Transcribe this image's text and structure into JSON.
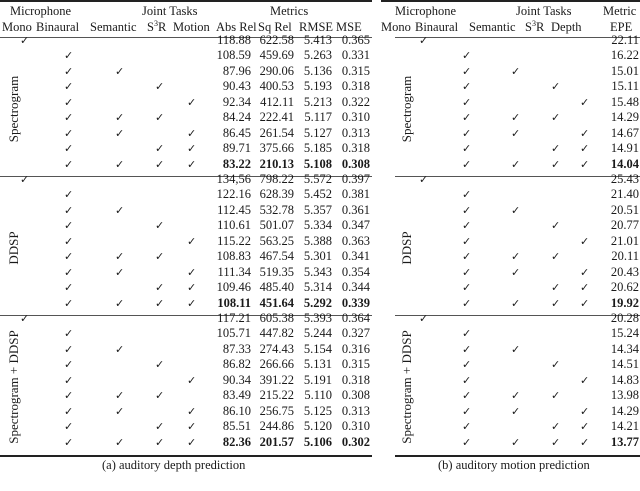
{
  "left_table": {
    "header": {
      "microphone": "Microphone",
      "joint_tasks": "Joint Tasks",
      "metrics": "Metrics",
      "cols": {
        "mono": "Mono",
        "binaural": "Binaural",
        "semantic": "Semantic",
        "s3r_base": "S",
        "s3r_sup": "3",
        "s3r_tail": "R",
        "task3": "Motion",
        "m1": "Abs Rel",
        "m2": "Sq Rel",
        "m3": "RMSE",
        "m4": "MSE"
      }
    },
    "groups": [
      {
        "label": "Spectrogram",
        "rows": [
          {
            "mono": true,
            "bin": false,
            "sem": false,
            "s3r": false,
            "t3": false,
            "v": [
              "118.88",
              "622.58",
              "5.413",
              "0.365"
            ],
            "bold": false
          },
          {
            "mono": false,
            "bin": true,
            "sem": false,
            "s3r": false,
            "t3": false,
            "v": [
              "108.59",
              "459.69",
              "5.263",
              "0.331"
            ],
            "bold": false
          },
          {
            "mono": false,
            "bin": true,
            "sem": true,
            "s3r": false,
            "t3": false,
            "v": [
              "87.96",
              "290.06",
              "5.136",
              "0.315"
            ],
            "bold": false
          },
          {
            "mono": false,
            "bin": true,
            "sem": false,
            "s3r": true,
            "t3": false,
            "v": [
              "90.43",
              "400.53",
              "5.193",
              "0.318"
            ],
            "bold": false
          },
          {
            "mono": false,
            "bin": true,
            "sem": false,
            "s3r": false,
            "t3": true,
            "v": [
              "92.34",
              "412.11",
              "5.213",
              "0.322"
            ],
            "bold": false
          },
          {
            "mono": false,
            "bin": true,
            "sem": true,
            "s3r": true,
            "t3": false,
            "v": [
              "84.24",
              "222.41",
              "5.117",
              "0.310"
            ],
            "bold": false
          },
          {
            "mono": false,
            "bin": true,
            "sem": true,
            "s3r": false,
            "t3": true,
            "v": [
              "86.45",
              "261.54",
              "5.127",
              "0.313"
            ],
            "bold": false
          },
          {
            "mono": false,
            "bin": true,
            "sem": false,
            "s3r": true,
            "t3": true,
            "v": [
              "89.71",
              "375.66",
              "5.185",
              "0.318"
            ],
            "bold": false
          },
          {
            "mono": false,
            "bin": true,
            "sem": true,
            "s3r": true,
            "t3": true,
            "v": [
              "83.22",
              "210.13",
              "5.108",
              "0.308"
            ],
            "bold": true
          }
        ]
      },
      {
        "label": "DDSP",
        "rows": [
          {
            "mono": true,
            "bin": false,
            "sem": false,
            "s3r": false,
            "t3": false,
            "v": [
              "134,56",
              "798.22",
              "5.572",
              "0.397"
            ],
            "bold": false
          },
          {
            "mono": false,
            "bin": true,
            "sem": false,
            "s3r": false,
            "t3": false,
            "v": [
              "122.16",
              "628.39",
              "5.452",
              "0.381"
            ],
            "bold": false
          },
          {
            "mono": false,
            "bin": true,
            "sem": true,
            "s3r": false,
            "t3": false,
            "v": [
              "112.45",
              "532.78",
              "5.357",
              "0.361"
            ],
            "bold": false
          },
          {
            "mono": false,
            "bin": true,
            "sem": false,
            "s3r": true,
            "t3": false,
            "v": [
              "110.61",
              "501.07",
              "5.334",
              "0.347"
            ],
            "bold": false
          },
          {
            "mono": false,
            "bin": true,
            "sem": false,
            "s3r": false,
            "t3": true,
            "v": [
              "115.22",
              "563.25",
              "5.388",
              "0.363"
            ],
            "bold": false
          },
          {
            "mono": false,
            "bin": true,
            "sem": true,
            "s3r": true,
            "t3": false,
            "v": [
              "108.83",
              "467.54",
              "5.301",
              "0.341"
            ],
            "bold": false
          },
          {
            "mono": false,
            "bin": true,
            "sem": true,
            "s3r": false,
            "t3": true,
            "v": [
              "111.34",
              "519.35",
              "5.343",
              "0.354"
            ],
            "bold": false
          },
          {
            "mono": false,
            "bin": true,
            "sem": false,
            "s3r": true,
            "t3": true,
            "v": [
              "109.46",
              "485.40",
              "5.314",
              "0.344"
            ],
            "bold": false
          },
          {
            "mono": false,
            "bin": true,
            "sem": true,
            "s3r": true,
            "t3": true,
            "v": [
              "108.11",
              "451.64",
              "5.292",
              "0.339"
            ],
            "bold": true
          }
        ]
      },
      {
        "label": "Spectrogram + DDSP",
        "rows": [
          {
            "mono": true,
            "bin": false,
            "sem": false,
            "s3r": false,
            "t3": false,
            "v": [
              "117.21",
              "605.38",
              "5.393",
              "0.364"
            ],
            "bold": false
          },
          {
            "mono": false,
            "bin": true,
            "sem": false,
            "s3r": false,
            "t3": false,
            "v": [
              "105.71",
              "447.82",
              "5.244",
              "0.327"
            ],
            "bold": false
          },
          {
            "mono": false,
            "bin": true,
            "sem": true,
            "s3r": false,
            "t3": false,
            "v": [
              "87.33",
              "274.43",
              "5.154",
              "0.316"
            ],
            "bold": false
          },
          {
            "mono": false,
            "bin": true,
            "sem": false,
            "s3r": true,
            "t3": false,
            "v": [
              "86.82",
              "266.66",
              "5.131",
              "0.315"
            ],
            "bold": false
          },
          {
            "mono": false,
            "bin": true,
            "sem": false,
            "s3r": false,
            "t3": true,
            "v": [
              "90.34",
              "391.22",
              "5.191",
              "0.318"
            ],
            "bold": false
          },
          {
            "mono": false,
            "bin": true,
            "sem": true,
            "s3r": true,
            "t3": false,
            "v": [
              "83.49",
              "215.22",
              "5.110",
              "0.308"
            ],
            "bold": false
          },
          {
            "mono": false,
            "bin": true,
            "sem": true,
            "s3r": false,
            "t3": true,
            "v": [
              "86.10",
              "256.75",
              "5.125",
              "0.313"
            ],
            "bold": false
          },
          {
            "mono": false,
            "bin": true,
            "sem": false,
            "s3r": true,
            "t3": true,
            "v": [
              "85.51",
              "244.86",
              "5.120",
              "0.310"
            ],
            "bold": false
          },
          {
            "mono": false,
            "bin": true,
            "sem": true,
            "s3r": true,
            "t3": true,
            "v": [
              "82.36",
              "201.57",
              "5.106",
              "0.302"
            ],
            "bold": true
          }
        ]
      }
    ],
    "caption": "(a) auditory depth prediction"
  },
  "right_table": {
    "header": {
      "microphone": "Microphone",
      "joint_tasks": "Joint Tasks",
      "metrics": "Metric",
      "cols": {
        "mono": "Mono",
        "binaural": "Binaural",
        "semantic": "Semantic",
        "s3r_base": "S",
        "s3r_sup": "3",
        "s3r_tail": "R",
        "task3": "Depth",
        "m1": "EPE"
      }
    },
    "groups": [
      {
        "label": "Spectrogram",
        "rows": [
          {
            "mono": true,
            "bin": false,
            "sem": false,
            "s3r": false,
            "t3": false,
            "v": [
              "22.11"
            ],
            "bold": false
          },
          {
            "mono": false,
            "bin": true,
            "sem": false,
            "s3r": false,
            "t3": false,
            "v": [
              "16.22"
            ],
            "bold": false
          },
          {
            "mono": false,
            "bin": true,
            "sem": true,
            "s3r": false,
            "t3": false,
            "v": [
              "15.01"
            ],
            "bold": false
          },
          {
            "mono": false,
            "bin": true,
            "sem": false,
            "s3r": true,
            "t3": false,
            "v": [
              "15.11"
            ],
            "bold": false
          },
          {
            "mono": false,
            "bin": true,
            "sem": false,
            "s3r": false,
            "t3": true,
            "v": [
              "15.48"
            ],
            "bold": false
          },
          {
            "mono": false,
            "bin": true,
            "sem": true,
            "s3r": true,
            "t3": false,
            "v": [
              "14.29"
            ],
            "bold": false
          },
          {
            "mono": false,
            "bin": true,
            "sem": true,
            "s3r": false,
            "t3": true,
            "v": [
              "14.67"
            ],
            "bold": false
          },
          {
            "mono": false,
            "bin": true,
            "sem": false,
            "s3r": true,
            "t3": true,
            "v": [
              "14.91"
            ],
            "bold": false
          },
          {
            "mono": false,
            "bin": true,
            "sem": true,
            "s3r": true,
            "t3": true,
            "v": [
              "14.04"
            ],
            "bold": true
          }
        ]
      },
      {
        "label": "DDSP",
        "rows": [
          {
            "mono": true,
            "bin": false,
            "sem": false,
            "s3r": false,
            "t3": false,
            "v": [
              "25.43"
            ],
            "bold": false
          },
          {
            "mono": false,
            "bin": true,
            "sem": false,
            "s3r": false,
            "t3": false,
            "v": [
              "21.40"
            ],
            "bold": false
          },
          {
            "mono": false,
            "bin": true,
            "sem": true,
            "s3r": false,
            "t3": false,
            "v": [
              "20.51"
            ],
            "bold": false
          },
          {
            "mono": false,
            "bin": true,
            "sem": false,
            "s3r": true,
            "t3": false,
            "v": [
              "20.77"
            ],
            "bold": false
          },
          {
            "mono": false,
            "bin": true,
            "sem": false,
            "s3r": false,
            "t3": true,
            "v": [
              "21.01"
            ],
            "bold": false
          },
          {
            "mono": false,
            "bin": true,
            "sem": true,
            "s3r": true,
            "t3": false,
            "v": [
              "20.11"
            ],
            "bold": false
          },
          {
            "mono": false,
            "bin": true,
            "sem": true,
            "s3r": false,
            "t3": true,
            "v": [
              "20.43"
            ],
            "bold": false
          },
          {
            "mono": false,
            "bin": true,
            "sem": false,
            "s3r": true,
            "t3": true,
            "v": [
              "20.62"
            ],
            "bold": false
          },
          {
            "mono": false,
            "bin": true,
            "sem": true,
            "s3r": true,
            "t3": true,
            "v": [
              "19.92"
            ],
            "bold": true
          }
        ]
      },
      {
        "label": "Spectrogram + DDSP",
        "rows": [
          {
            "mono": true,
            "bin": false,
            "sem": false,
            "s3r": false,
            "t3": false,
            "v": [
              "20.28"
            ],
            "bold": false
          },
          {
            "mono": false,
            "bin": true,
            "sem": false,
            "s3r": false,
            "t3": false,
            "v": [
              "15.24"
            ],
            "bold": false
          },
          {
            "mono": false,
            "bin": true,
            "sem": true,
            "s3r": false,
            "t3": false,
            "v": [
              "14.34"
            ],
            "bold": false
          },
          {
            "mono": false,
            "bin": true,
            "sem": false,
            "s3r": true,
            "t3": false,
            "v": [
              "14.51"
            ],
            "bold": false
          },
          {
            "mono": false,
            "bin": true,
            "sem": false,
            "s3r": false,
            "t3": true,
            "v": [
              "14.83"
            ],
            "bold": false
          },
          {
            "mono": false,
            "bin": true,
            "sem": true,
            "s3r": true,
            "t3": false,
            "v": [
              "13.98"
            ],
            "bold": false
          },
          {
            "mono": false,
            "bin": true,
            "sem": true,
            "s3r": false,
            "t3": true,
            "v": [
              "14.29"
            ],
            "bold": false
          },
          {
            "mono": false,
            "bin": true,
            "sem": false,
            "s3r": true,
            "t3": true,
            "v": [
              "14.21"
            ],
            "bold": false
          },
          {
            "mono": false,
            "bin": true,
            "sem": true,
            "s3r": true,
            "t3": true,
            "v": [
              "13.77"
            ],
            "bold": true
          }
        ]
      }
    ],
    "caption": "(b) auditory motion prediction"
  },
  "symbols": {
    "check": "✓"
  }
}
